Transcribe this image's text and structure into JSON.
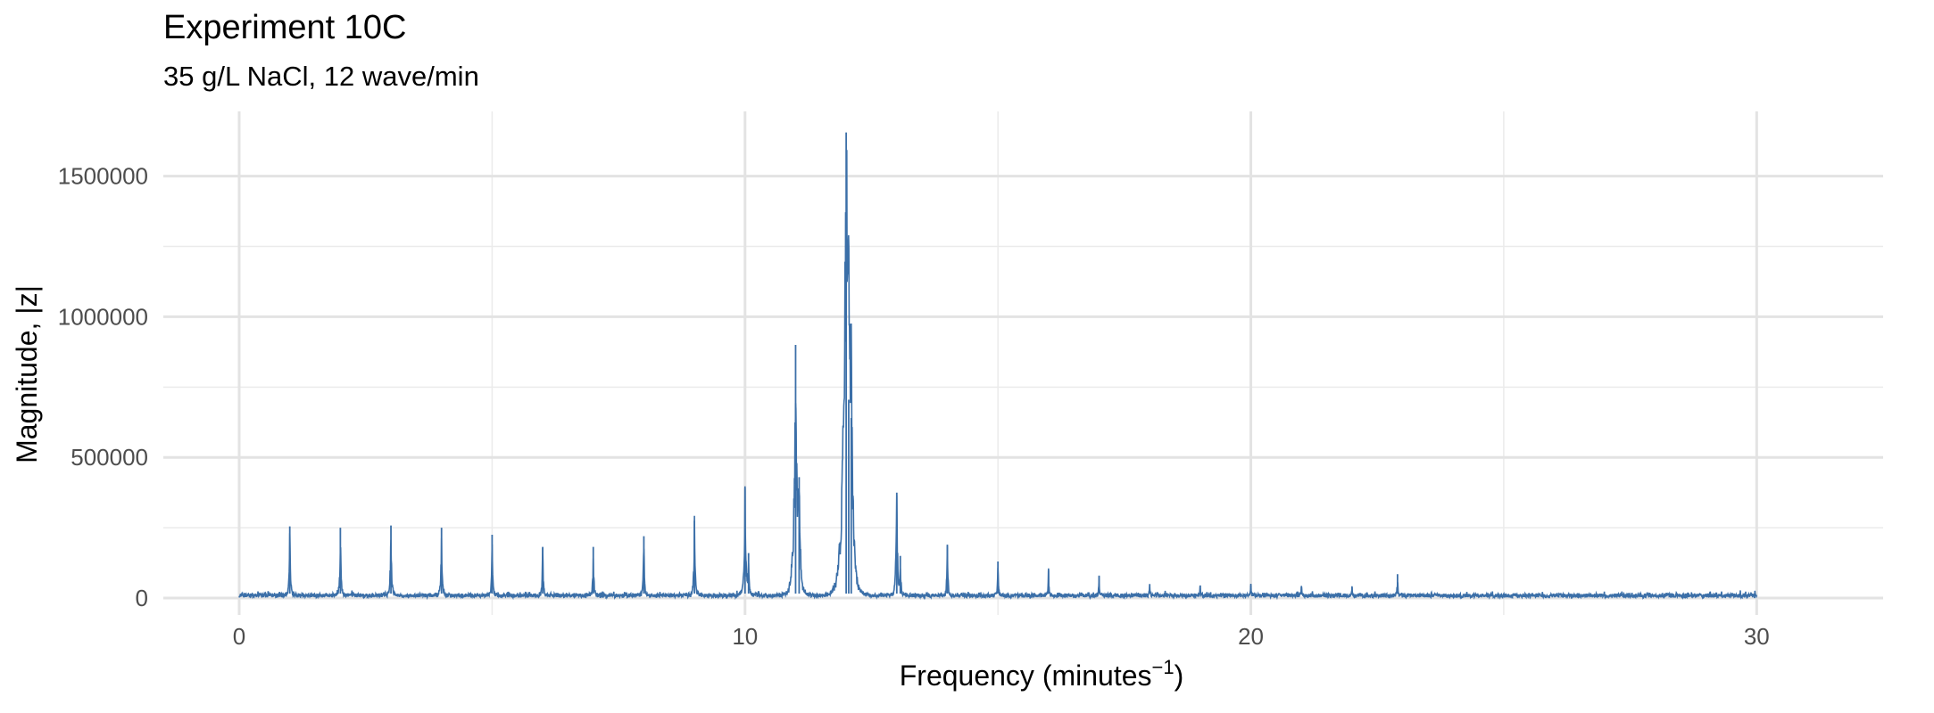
{
  "chart_data": {
    "type": "line",
    "title": "Experiment 10C",
    "subtitle": "35 g/L NaCl, 12 wave/min",
    "xlabel": "Frequency (minutes",
    "xlabel_superscript": "−1",
    "xlabel_suffix": ")",
    "ylabel": "Magnitude, |z|",
    "xlim": [
      -1.5,
      32.5
    ],
    "ylim": [
      -60000,
      1730000
    ],
    "x_ticks": [
      0,
      10,
      20,
      30
    ],
    "x_tick_labels": [
      "0",
      "10",
      "20",
      "30"
    ],
    "x_minor_ticks": [
      5,
      15,
      25
    ],
    "y_ticks": [
      0,
      500000,
      1000000,
      1500000
    ],
    "y_tick_labels": [
      "0",
      "500000",
      "1000000",
      "1500000"
    ],
    "y_minor_ticks": [
      250000,
      750000,
      1250000
    ],
    "grid": true,
    "line_color": "#3b6fa8",
    "baseline_noise": [
      2000,
      16000
    ],
    "peaks": [
      {
        "x": 1.0,
        "y": 255000
      },
      {
        "x": 2.0,
        "y": 250000
      },
      {
        "x": 3.0,
        "y": 258000
      },
      {
        "x": 4.0,
        "y": 250000
      },
      {
        "x": 5.0,
        "y": 225000
      },
      {
        "x": 6.0,
        "y": 182000
      },
      {
        "x": 7.0,
        "y": 182000
      },
      {
        "x": 8.0,
        "y": 220000
      },
      {
        "x": 9.0,
        "y": 275000
      },
      {
        "x": 10.0,
        "y": 392000
      },
      {
        "x": 10.07,
        "y": 160000
      },
      {
        "x": 11.0,
        "y": 900000
      },
      {
        "x": 11.07,
        "y": 430000
      },
      {
        "x": 12.0,
        "y": 1655000
      },
      {
        "x": 12.05,
        "y": 705000
      },
      {
        "x": 12.1,
        "y": 640000
      },
      {
        "x": 13.0,
        "y": 375000
      },
      {
        "x": 13.07,
        "y": 150000
      },
      {
        "x": 14.0,
        "y": 190000
      },
      {
        "x": 15.0,
        "y": 130000
      },
      {
        "x": 16.0,
        "y": 100000
      },
      {
        "x": 17.0,
        "y": 80000
      },
      {
        "x": 18.0,
        "y": 50000
      },
      {
        "x": 19.0,
        "y": 45000
      },
      {
        "x": 20.0,
        "y": 45000
      },
      {
        "x": 21.0,
        "y": 40000
      },
      {
        "x": 22.0,
        "y": 38000
      },
      {
        "x": 22.9,
        "y": 85000
      }
    ]
  }
}
